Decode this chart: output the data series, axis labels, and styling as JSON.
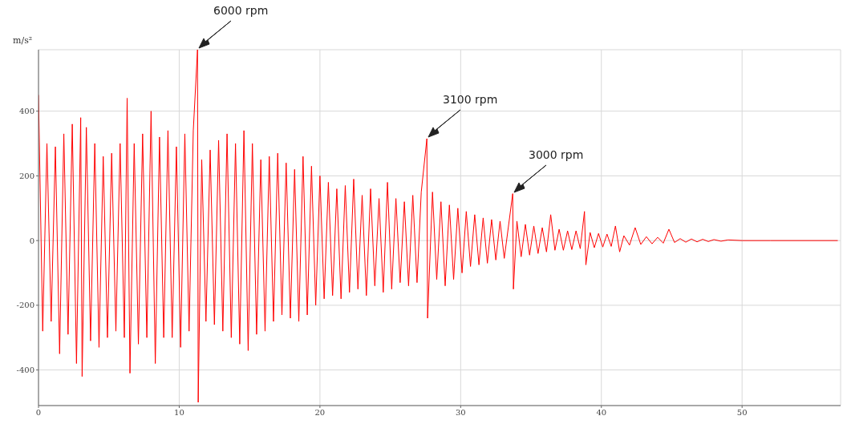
{
  "chart_data": {
    "type": "line",
    "ylabel": "m/s²",
    "x": [
      0,
      0.3,
      0.6,
      0.9,
      1.2,
      1.5,
      1.8,
      2.1,
      2.4,
      2.7,
      3.0,
      3.1,
      3.4,
      3.7,
      4.0,
      4.3,
      4.6,
      4.9,
      5.2,
      5.5,
      5.8,
      6.1,
      6.3,
      6.5,
      6.8,
      7.1,
      7.4,
      7.7,
      8.0,
      8.3,
      8.6,
      8.9,
      9.2,
      9.5,
      9.8,
      10.1,
      10.4,
      10.7,
      11.0,
      11.3,
      11.35,
      11.6,
      11.9,
      12.2,
      12.5,
      12.8,
      13.1,
      13.4,
      13.7,
      14.0,
      14.3,
      14.6,
      14.9,
      15.2,
      15.5,
      15.8,
      16.1,
      16.4,
      16.7,
      17.0,
      17.3,
      17.6,
      17.9,
      18.2,
      18.5,
      18.8,
      19.1,
      19.4,
      19.7,
      20.0,
      20.3,
      20.6,
      20.9,
      21.2,
      21.5,
      21.8,
      22.1,
      22.4,
      22.7,
      23.0,
      23.3,
      23.6,
      23.9,
      24.2,
      24.5,
      24.8,
      25.1,
      25.4,
      25.7,
      26.0,
      26.3,
      26.6,
      26.9,
      27.2,
      27.6,
      27.65,
      28.0,
      28.3,
      28.6,
      28.9,
      29.2,
      29.5,
      29.8,
      30.1,
      30.4,
      30.7,
      31.0,
      31.3,
      31.6,
      31.9,
      32.2,
      32.5,
      32.8,
      33.1,
      33.7,
      33.75,
      34.0,
      34.3,
      34.6,
      34.9,
      35.2,
      35.5,
      35.8,
      36.1,
      36.4,
      36.7,
      37.0,
      37.3,
      37.6,
      37.9,
      38.2,
      38.5,
      38.8,
      38.9,
      39.2,
      39.5,
      39.8,
      40.1,
      40.4,
      40.7,
      41.0,
      41.3,
      41.6,
      42.0,
      42.4,
      42.8,
      43.2,
      43.6,
      44.0,
      44.4,
      44.8,
      45.2,
      45.6,
      46.0,
      46.4,
      46.8,
      47.2,
      47.6,
      48.0,
      48.5,
      49.0,
      50.0,
      52.0,
      56.8
    ],
    "series": [
      {
        "color": "#ff0000",
        "values": [
          450,
          -280,
          300,
          -250,
          290,
          -350,
          330,
          -290,
          360,
          -380,
          380,
          -420,
          350,
          -310,
          300,
          -330,
          260,
          -300,
          270,
          -280,
          300,
          -300,
          440,
          -410,
          300,
          -320,
          330,
          -300,
          400,
          -380,
          320,
          -300,
          340,
          -300,
          290,
          -330,
          330,
          -280,
          340,
          590,
          -500,
          250,
          -250,
          280,
          -260,
          310,
          -280,
          330,
          -300,
          300,
          -320,
          340,
          -340,
          300,
          -290,
          250,
          -280,
          260,
          -250,
          270,
          -230,
          240,
          -240,
          220,
          -250,
          260,
          -230,
          230,
          -200,
          200,
          -180,
          180,
          -170,
          160,
          -180,
          170,
          -160,
          190,
          -150,
          140,
          -170,
          160,
          -140,
          130,
          -160,
          180,
          -150,
          130,
          -130,
          120,
          -140,
          140,
          -130,
          150,
          315,
          -240,
          150,
          -120,
          120,
          -140,
          110,
          -120,
          100,
          -100,
          90,
          -80,
          80,
          -75,
          70,
          -70,
          65,
          -60,
          60,
          -55,
          145,
          -150,
          60,
          -50,
          50,
          -45,
          45,
          -40,
          40,
          -35,
          80,
          -30,
          35,
          -30,
          30,
          -28,
          30,
          -25,
          90,
          -75,
          25,
          -22,
          22,
          -20,
          20,
          -18,
          45,
          -35,
          15,
          -14,
          40,
          -12,
          12,
          -10,
          10,
          -8,
          35,
          -6,
          6,
          -5,
          5,
          -4,
          4,
          -3,
          3,
          -2,
          2,
          0,
          0,
          0
        ]
      }
    ],
    "xlim": [
      0,
      57
    ],
    "xticks": [
      0,
      10,
      20,
      30,
      40,
      50
    ],
    "ylim": [
      -510,
      590
    ],
    "yticks": [
      -400,
      -200,
      0,
      200,
      400
    ],
    "grid": true,
    "legend": false,
    "marker": "none",
    "line_style": "solid",
    "annotations": [
      "6000 rpm",
      "3100 rpm",
      "3000 rpm"
    ]
  }
}
